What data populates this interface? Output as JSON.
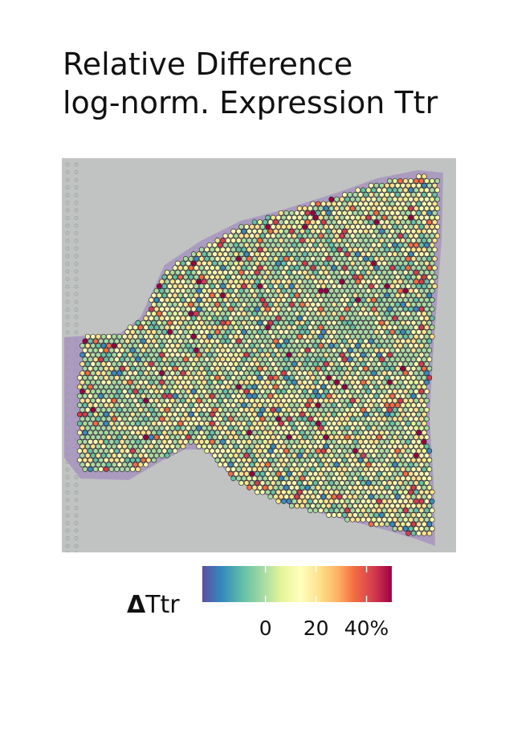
{
  "chart_data": {
    "type": "heatmap",
    "title_lines": [
      "Relative Difference",
      "log-norm. Expression Ttr"
    ],
    "legend": {
      "symbol": "Δ",
      "gene": "Ttr",
      "tick_labels": [
        "0",
        "20",
        "40%"
      ],
      "tick_values": [
        0,
        20,
        40
      ],
      "range": [
        -25,
        50
      ],
      "palette": [
        "#5e4fa2",
        "#3288bd",
        "#66c2a5",
        "#abdda4",
        "#e6f598",
        "#ffffbf",
        "#fee08b",
        "#fdae61",
        "#f46d43",
        "#d53e4f",
        "#9e0142"
      ]
    },
    "spot_fill_distribution": {
      "dominant_colors": [
        "#f6f6b0",
        "#abd9a2",
        "#fde28f"
      ],
      "accent_colors": [
        "#66c2a5",
        "#3a8cbd",
        "#f46d43",
        "#d53e4f",
        "#9e0142"
      ]
    },
    "background_color": "#c0c3c2",
    "tissue_color": "#9a7fb8"
  }
}
